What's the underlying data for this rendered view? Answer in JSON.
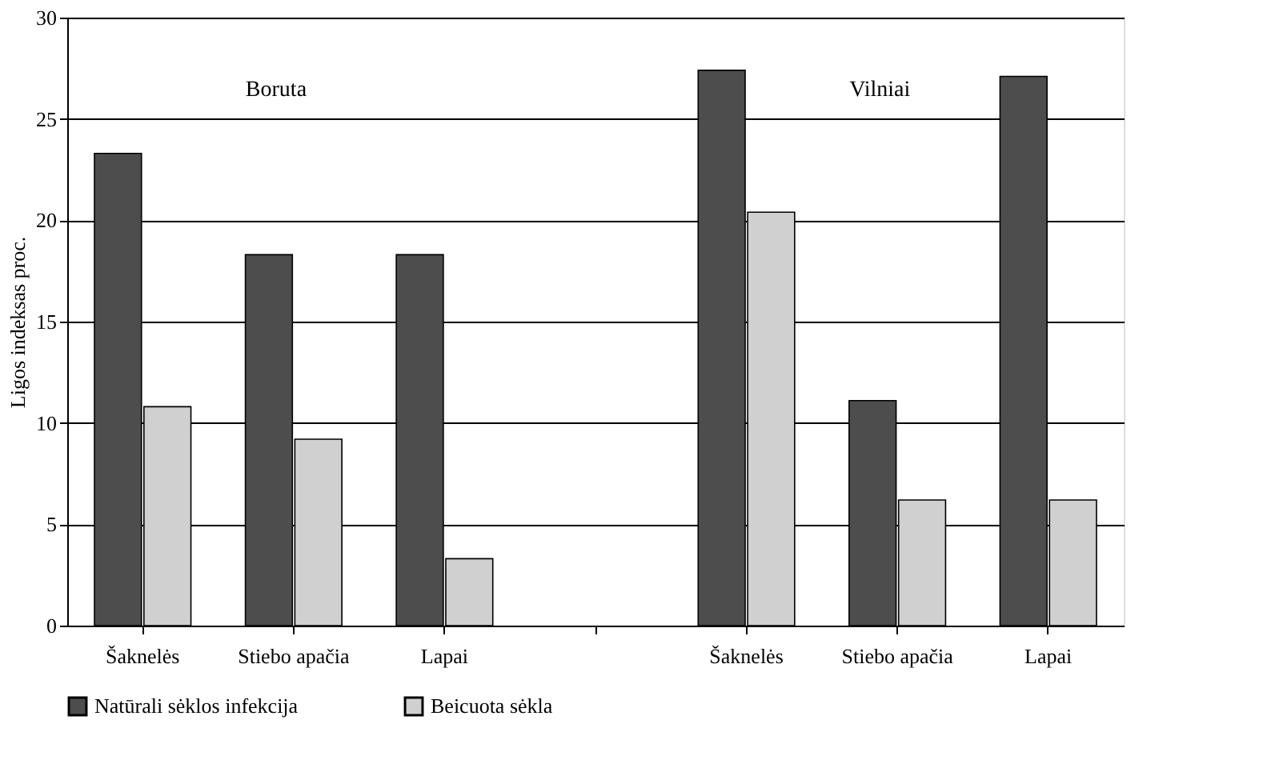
{
  "chart_data": {
    "type": "bar",
    "ylabel": "Ligos indeksas proc.",
    "categories": [
      "Šaknelės",
      "Stiebo apačia",
      "Lapai",
      null,
      "Šaknelės",
      "Stiebo apačia",
      "Lapai"
    ],
    "series": [
      {
        "name": "Natūrali sėklos  infekcija",
        "color": "#4d4d4d",
        "values": [
          23.3,
          18.3,
          18.3,
          null,
          27.4,
          11.1,
          27.1
        ]
      },
      {
        "name": "Beicuota sėkla",
        "color": "#d0d0d0",
        "values": [
          10.8,
          9.2,
          3.3,
          null,
          20.4,
          6.2,
          6.2
        ]
      }
    ],
    "annotations": [
      "Boruta",
      "Vilniai"
    ],
    "ylim": [
      0,
      30
    ],
    "yticks": [
      0,
      5,
      10,
      15,
      20,
      25,
      30
    ],
    "grid": "y",
    "legend": "bottom"
  }
}
